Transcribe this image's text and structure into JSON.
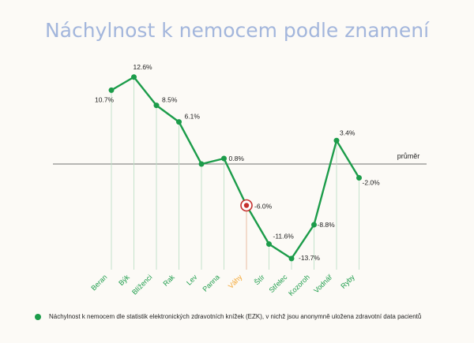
{
  "chart_data": {
    "type": "line",
    "title": "Náchylnost k nemocem podle znamení",
    "reference_label": "průměr",
    "reference_value": 0,
    "categories": [
      "Beran",
      "Býk",
      "Blíženci",
      "Rak",
      "Lev",
      "Panna",
      "Váhy",
      "Štír",
      "Střelec",
      "Kozoroh",
      "Vodnář",
      "Ryby"
    ],
    "values": [
      10.7,
      12.6,
      8.5,
      6.1,
      0,
      0.8,
      -6.0,
      -11.6,
      -13.7,
      -8.8,
      3.4,
      -2.0
    ],
    "value_labels": [
      "10.7%",
      "12.6%",
      "8.5%",
      "6.1%",
      "",
      "0.8%",
      "-6.0%",
      "-11.6%",
      "-13.7%",
      "-8.8%",
      "3.4%",
      "-2.0%"
    ],
    "highlight_index": 6,
    "series": [
      {
        "name": "Náchylnost k nemocem dle statistik elektronických zdravotních knížek (EZK), v nichž jsou anonymně uložena zdravotní data pacientů"
      }
    ],
    "colors": {
      "line": "#1c9c4a",
      "highlight": "#c5302e",
      "highlight_text": "#f4a52f",
      "baseline": "#444444",
      "droplines": "#bfe0c8",
      "highlight_dropline": "#e8b59a",
      "title": "#a3b6dc"
    }
  }
}
